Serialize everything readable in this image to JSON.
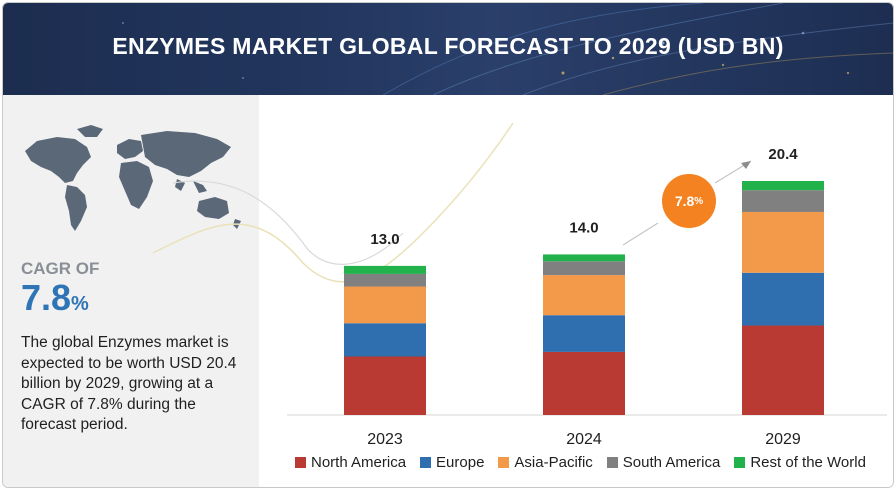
{
  "header": {
    "title": "ENZYMES MARKET GLOBAL FORECAST TO 2029 (USD BN)"
  },
  "summary": {
    "cagr_label": "CAGR OF",
    "cagr_number": "7.8",
    "cagr_pct_sign": "%",
    "description": "The global Enzymes market is expected to be worth USD 20.4 billion by 2029, growing at a CAGR of 7.8% during the forecast period."
  },
  "badge": {
    "number": "7.8",
    "pct_sign": "%"
  },
  "chart_data": {
    "type": "bar",
    "stacked": true,
    "categories": [
      "2023",
      "2024",
      "2029"
    ],
    "totals": [
      13.0,
      14.0,
      20.4
    ],
    "total_labels": [
      "13.0",
      "14.0",
      "20.4"
    ],
    "series": [
      {
        "name": "North America",
        "color": "#b83a32",
        "values": [
          5.1,
          5.5,
          7.8
        ]
      },
      {
        "name": "Europe",
        "color": "#2f6fb0",
        "values": [
          2.9,
          3.2,
          4.6
        ]
      },
      {
        "name": "Asia-Pacific",
        "color": "#f39a4a",
        "values": [
          3.2,
          3.5,
          5.3
        ]
      },
      {
        "name": "South America",
        "color": "#808080",
        "values": [
          1.1,
          1.2,
          1.9
        ]
      },
      {
        "name": "Rest of the World",
        "color": "#22b24c",
        "values": [
          0.7,
          0.6,
          0.8
        ]
      }
    ],
    "ylim": [
      0,
      20.4
    ],
    "axis_visible": false,
    "legend_position": "bottom"
  }
}
